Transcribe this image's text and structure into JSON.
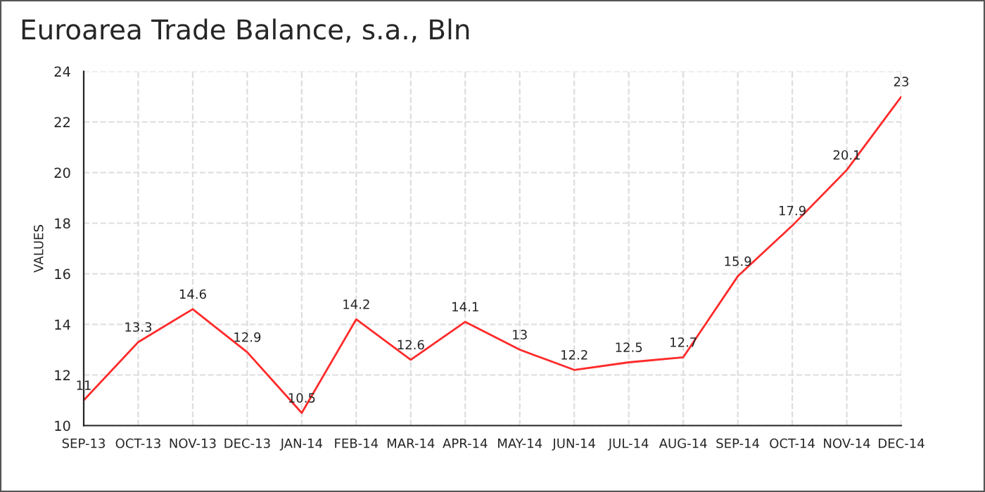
{
  "chart_data": {
    "type": "line",
    "title": "Euroarea Trade Balance, s.a., Bln",
    "ylabel": "VALUES",
    "categories": [
      "SEP-13",
      "OCT-13",
      "NOV-13",
      "DEC-13",
      "JAN-14",
      "FEB-14",
      "MAR-14",
      "APR-14",
      "MAY-14",
      "JUN-14",
      "JUL-14",
      "AUG-14",
      "SEP-14",
      "OCT-14",
      "NOV-14",
      "DEC-14"
    ],
    "series": [
      {
        "color": "#ff2a2a",
        "values": [
          11,
          13.3,
          14.6,
          12.9,
          10.5,
          14.2,
          12.6,
          14.1,
          13,
          12.2,
          12.5,
          12.7,
          15.9,
          17.9,
          20.1,
          23
        ]
      }
    ],
    "ylim": [
      10,
      24
    ],
    "yticks": [
      10,
      12,
      14,
      16,
      18,
      20,
      22,
      24
    ],
    "grid": true,
    "data_labels": true,
    "line_style": "solid"
  }
}
